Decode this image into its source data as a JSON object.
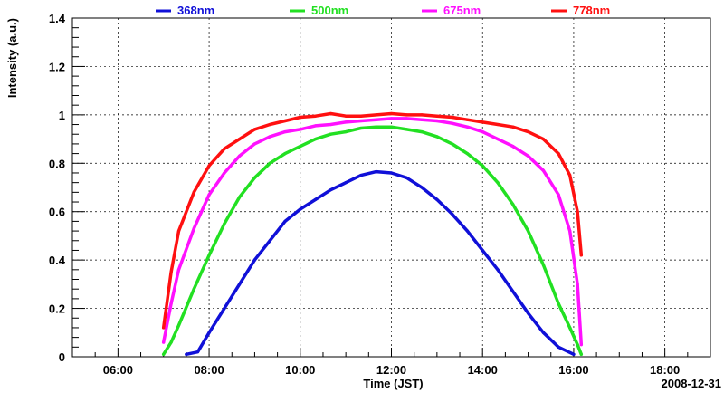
{
  "chart_data": {
    "type": "line",
    "ylabel": "Intensity (a.u.)",
    "xlabel": "Time (JST)",
    "date_label": "2008-12-31",
    "xlim": [
      "05:00",
      "19:00"
    ],
    "ylim": [
      0,
      1.4
    ],
    "x_ticks": [
      "06:00",
      "08:00",
      "10:00",
      "12:00",
      "14:00",
      "16:00",
      "18:00"
    ],
    "y_ticks": [
      "0",
      "0.2",
      "0.4",
      "0.6",
      "0.8",
      "1",
      "1.2",
      "1.4"
    ],
    "grid": true,
    "legend_position": "top",
    "series": [
      {
        "name": "368nm",
        "color": "#1010d8",
        "x": [
          "07:30",
          "07:45",
          "08:00",
          "08:20",
          "08:40",
          "09:00",
          "09:20",
          "09:40",
          "10:00",
          "10:20",
          "10:40",
          "11:00",
          "11:20",
          "11:40",
          "12:00",
          "12:20",
          "12:40",
          "13:00",
          "13:20",
          "13:40",
          "14:00",
          "14:20",
          "14:40",
          "15:00",
          "15:20",
          "15:40",
          "16:00"
        ],
        "values": [
          0.01,
          0.02,
          0.1,
          0.2,
          0.3,
          0.4,
          0.48,
          0.56,
          0.61,
          0.65,
          0.69,
          0.72,
          0.75,
          0.765,
          0.76,
          0.74,
          0.7,
          0.65,
          0.59,
          0.52,
          0.44,
          0.36,
          0.27,
          0.18,
          0.1,
          0.04,
          0.01
        ]
      },
      {
        "name": "500nm",
        "color": "#22e022",
        "x": [
          "07:00",
          "07:10",
          "07:20",
          "07:40",
          "08:00",
          "08:20",
          "08:40",
          "09:00",
          "09:20",
          "09:40",
          "10:00",
          "10:20",
          "10:40",
          "11:00",
          "11:20",
          "11:40",
          "12:00",
          "12:20",
          "12:40",
          "13:00",
          "13:20",
          "13:40",
          "14:00",
          "14:20",
          "14:40",
          "15:00",
          "15:20",
          "15:40",
          "15:55",
          "16:05",
          "16:10"
        ],
        "values": [
          0.01,
          0.06,
          0.13,
          0.28,
          0.42,
          0.55,
          0.66,
          0.74,
          0.8,
          0.84,
          0.87,
          0.9,
          0.92,
          0.93,
          0.945,
          0.95,
          0.95,
          0.94,
          0.93,
          0.91,
          0.88,
          0.84,
          0.79,
          0.72,
          0.63,
          0.52,
          0.38,
          0.22,
          0.12,
          0.05,
          0.01
        ]
      },
      {
        "name": "675nm",
        "color": "#ff10ff",
        "x": [
          "07:00",
          "07:10",
          "07:20",
          "07:40",
          "08:00",
          "08:20",
          "08:40",
          "09:00",
          "09:20",
          "09:40",
          "10:00",
          "10:20",
          "10:40",
          "11:00",
          "11:20",
          "11:40",
          "12:00",
          "12:20",
          "12:40",
          "13:00",
          "13:20",
          "13:40",
          "14:00",
          "14:20",
          "14:40",
          "15:00",
          "15:20",
          "15:40",
          "15:55",
          "16:05",
          "16:10"
        ],
        "values": [
          0.06,
          0.22,
          0.36,
          0.53,
          0.67,
          0.76,
          0.83,
          0.88,
          0.91,
          0.93,
          0.94,
          0.955,
          0.96,
          0.97,
          0.975,
          0.98,
          0.985,
          0.985,
          0.98,
          0.975,
          0.965,
          0.95,
          0.93,
          0.9,
          0.87,
          0.83,
          0.77,
          0.67,
          0.52,
          0.3,
          0.05
        ]
      },
      {
        "name": "778nm",
        "color": "#ff1010",
        "x": [
          "07:00",
          "07:10",
          "07:20",
          "07:40",
          "08:00",
          "08:20",
          "08:40",
          "09:00",
          "09:20",
          "09:40",
          "10:00",
          "10:20",
          "10:40",
          "11:00",
          "11:20",
          "11:40",
          "12:00",
          "12:20",
          "12:40",
          "13:00",
          "13:20",
          "13:40",
          "14:00",
          "14:20",
          "14:40",
          "15:00",
          "15:20",
          "15:40",
          "15:55",
          "16:05",
          "16:10"
        ],
        "values": [
          0.12,
          0.35,
          0.52,
          0.68,
          0.79,
          0.86,
          0.9,
          0.94,
          0.96,
          0.975,
          0.99,
          0.995,
          1.005,
          0.995,
          0.995,
          1.0,
          1.005,
          1.0,
          1.0,
          0.995,
          0.99,
          0.98,
          0.97,
          0.96,
          0.95,
          0.93,
          0.9,
          0.84,
          0.75,
          0.6,
          0.42
        ]
      }
    ]
  }
}
